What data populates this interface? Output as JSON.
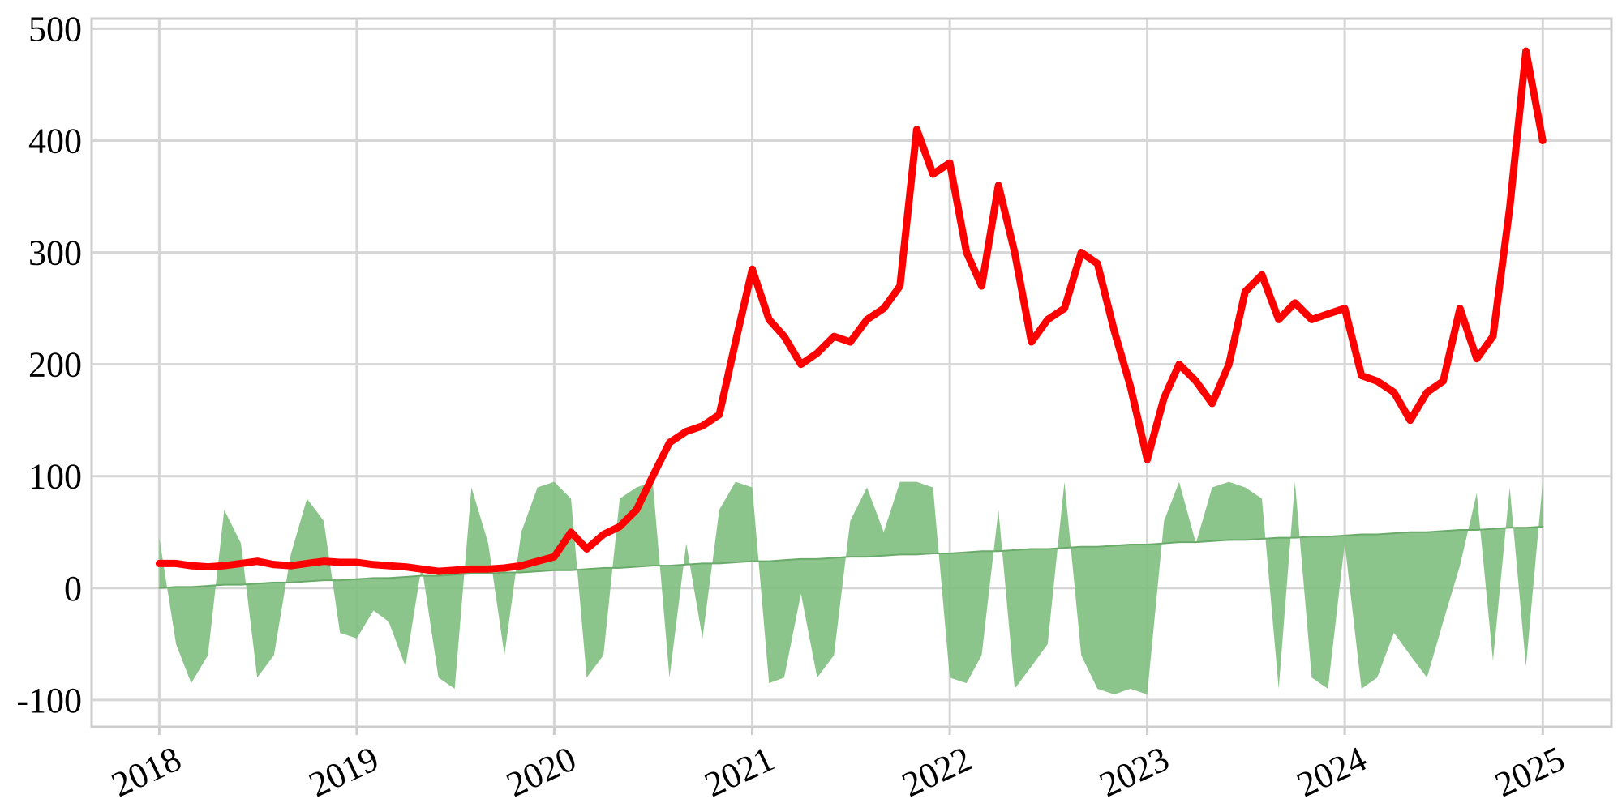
{
  "chart_data": {
    "type": "line",
    "x": [
      "2018-01-01",
      "2018-02-01",
      "2018-03-01",
      "2018-04-01",
      "2018-05-01",
      "2018-06-01",
      "2018-07-01",
      "2018-08-01",
      "2018-09-01",
      "2018-10-01",
      "2018-11-01",
      "2018-12-01",
      "2019-01-01",
      "2019-02-01",
      "2019-03-01",
      "2019-04-01",
      "2019-05-01",
      "2019-06-01",
      "2019-07-01",
      "2019-08-01",
      "2019-09-01",
      "2019-10-01",
      "2019-11-01",
      "2019-12-01",
      "2020-01-01",
      "2020-02-01",
      "2020-03-01",
      "2020-04-01",
      "2020-05-01",
      "2020-06-01",
      "2020-07-01",
      "2020-08-01",
      "2020-09-01",
      "2020-10-01",
      "2020-11-01",
      "2020-12-01",
      "2021-01-01",
      "2021-02-01",
      "2021-03-01",
      "2021-04-01",
      "2021-05-01",
      "2021-06-01",
      "2021-07-01",
      "2021-08-01",
      "2021-09-01",
      "2021-10-01",
      "2021-11-01",
      "2021-12-01",
      "2022-01-01",
      "2022-02-01",
      "2022-03-01",
      "2022-04-01",
      "2022-05-01",
      "2022-06-01",
      "2022-07-01",
      "2022-08-01",
      "2022-09-01",
      "2022-10-01",
      "2022-11-01",
      "2022-12-01",
      "2023-01-01",
      "2023-02-01",
      "2023-03-01",
      "2023-04-01",
      "2023-05-01",
      "2023-06-01",
      "2023-07-01",
      "2023-08-01",
      "2023-09-01",
      "2023-10-01",
      "2023-11-01",
      "2023-12-01",
      "2024-01-01",
      "2024-02-01",
      "2024-03-01",
      "2024-04-01",
      "2024-05-01",
      "2024-06-01",
      "2024-07-01",
      "2024-08-01",
      "2024-09-01",
      "2024-10-01",
      "2024-11-01",
      "2024-12-01",
      "2025-01-01"
    ],
    "series": [
      {
        "color": "#ff0000",
        "values": [
          22,
          22,
          20,
          19,
          20,
          22,
          24,
          21,
          20,
          22,
          24,
          23,
          23,
          21,
          20,
          19,
          17,
          15,
          16,
          17,
          17,
          18,
          20,
          24,
          28,
          50,
          35,
          48,
          55,
          70,
          100,
          130,
          140,
          145,
          155,
          220,
          285,
          240,
          225,
          200,
          210,
          225,
          220,
          240,
          250,
          270,
          410,
          370,
          380,
          300,
          270,
          360,
          300,
          220,
          240,
          250,
          300,
          290,
          230,
          180,
          115,
          170,
          200,
          185,
          165,
          200,
          265,
          280,
          240,
          255,
          240,
          245,
          250,
          190,
          185,
          175,
          150,
          175,
          185,
          250,
          205,
          225,
          340,
          480,
          400
        ]
      },
      {
        "color": "#7fbf7f",
        "fill_to_series": 2,
        "values": [
          45,
          -50,
          -85,
          -60,
          70,
          40,
          -80,
          -60,
          30,
          80,
          60,
          -40,
          -45,
          -20,
          -30,
          -70,
          20,
          -80,
          -90,
          90,
          40,
          -60,
          50,
          90,
          95,
          80,
          -80,
          -60,
          80,
          90,
          95,
          -80,
          40,
          -45,
          70,
          95,
          90,
          -85,
          -80,
          -5,
          -80,
          -60,
          60,
          90,
          50,
          95,
          95,
          90,
          -80,
          -85,
          -60,
          70,
          -90,
          -70,
          -50,
          95,
          -60,
          -90,
          -95,
          -90,
          -95,
          60,
          95,
          40,
          90,
          95,
          90,
          80,
          -90,
          95,
          -80,
          -90,
          40,
          -90,
          -80,
          -40,
          -60,
          -80,
          -30,
          20,
          85,
          -65,
          90,
          -70,
          95
        ]
      },
      {
        "color": "#6aaa6a",
        "values": [
          0,
          1,
          1,
          2,
          3,
          3,
          4,
          5,
          5,
          6,
          7,
          7,
          8,
          9,
          9,
          10,
          11,
          11,
          12,
          13,
          13,
          14,
          14,
          15,
          16,
          16,
          17,
          18,
          18,
          19,
          20,
          20,
          21,
          22,
          22,
          23,
          24,
          24,
          25,
          26,
          26,
          27,
          28,
          28,
          29,
          30,
          30,
          31,
          31,
          32,
          33,
          33,
          34,
          35,
          35,
          36,
          37,
          37,
          38,
          39,
          39,
          40,
          41,
          41,
          42,
          43,
          43,
          44,
          45,
          45,
          46,
          46,
          47,
          48,
          48,
          49,
          50,
          50,
          51,
          52,
          52,
          53,
          54,
          54,
          55
        ]
      }
    ],
    "xlim": [
      "2017-08-29",
      "2025-05-08"
    ],
    "xticks": [
      {
        "value": "2018-01-01",
        "label": "2018"
      },
      {
        "value": "2019-01-01",
        "label": "2019"
      },
      {
        "value": "2020-01-01",
        "label": "2020"
      },
      {
        "value": "2021-01-01",
        "label": "2021"
      },
      {
        "value": "2022-01-01",
        "label": "2022"
      },
      {
        "value": "2023-01-01",
        "label": "2023"
      },
      {
        "value": "2024-01-01",
        "label": "2024"
      },
      {
        "value": "2025-01-01",
        "label": "2025"
      }
    ],
    "ylim": [
      -124,
      509
    ],
    "yticks": [
      -100,
      0,
      100,
      200,
      300,
      400,
      500
    ],
    "grid": true
  }
}
